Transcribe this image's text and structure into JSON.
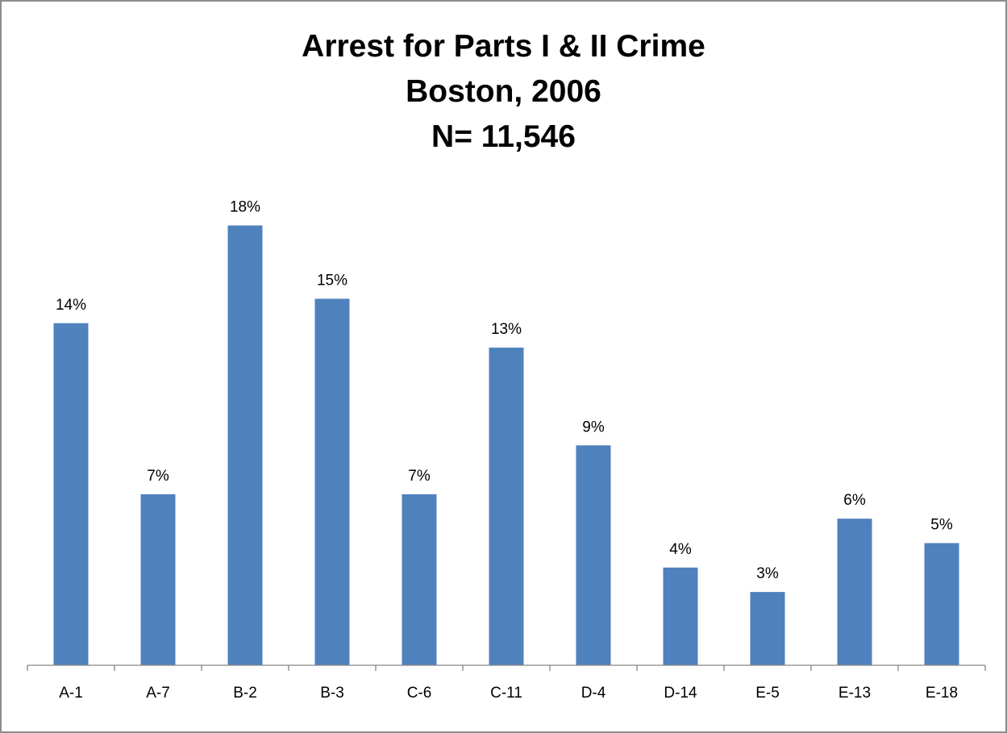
{
  "chart_data": {
    "type": "bar",
    "title_lines": [
      "Arrest for Parts I & II Crime",
      "Boston, 2006",
      "N= 11,546"
    ],
    "categories": [
      "A-1",
      "A-7",
      "B-2",
      "B-3",
      "C-6",
      "C-11",
      "D-4",
      "D-14",
      "E-5",
      "E-13",
      "E-18"
    ],
    "values": [
      14,
      7,
      18,
      15,
      7,
      13,
      9,
      4,
      3,
      6,
      5
    ],
    "data_labels": [
      "14%",
      "7%",
      "18%",
      "15%",
      "7%",
      "13%",
      "9%",
      "4%",
      "3%",
      "6%",
      "5%"
    ],
    "ylim": [
      0,
      20
    ],
    "grid": false,
    "legend": "none",
    "bar_color": "#4f81bd"
  }
}
